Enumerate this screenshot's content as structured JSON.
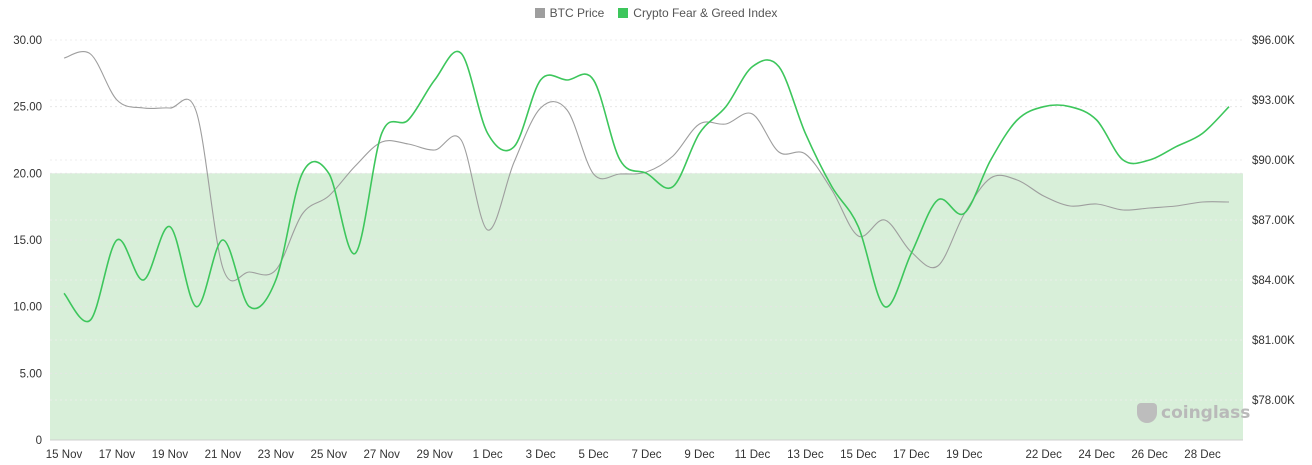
{
  "legend": [
    {
      "label": "BTC Price",
      "color": "#9e9e9e"
    },
    {
      "label": "Crypto Fear & Greed Index",
      "color": "#3dc65c"
    }
  ],
  "watermark": "coinglass",
  "chart_data": {
    "type": "line",
    "x": [
      "15 Nov",
      "16 Nov",
      "17 Nov",
      "18 Nov",
      "19 Nov",
      "20 Nov",
      "21 Nov",
      "22 Nov",
      "23 Nov",
      "24 Nov",
      "25 Nov",
      "26 Nov",
      "27 Nov",
      "28 Nov",
      "29 Nov",
      "30 Nov",
      "1 Dec",
      "2 Dec",
      "3 Dec",
      "4 Dec",
      "5 Dec",
      "6 Dec",
      "7 Dec",
      "8 Dec",
      "9 Dec",
      "10 Dec",
      "11 Dec",
      "12 Dec",
      "13 Dec",
      "14 Dec",
      "15 Dec",
      "16 Dec",
      "17 Dec",
      "18 Dec",
      "19 Dec",
      "20 Dec",
      "21 Dec",
      "22 Dec",
      "23 Dec",
      "24 Dec",
      "25 Dec",
      "26 Dec",
      "27 Dec",
      "28 Dec",
      "29 Dec"
    ],
    "x_tick_labels": [
      "15 Nov",
      "17 Nov",
      "19 Nov",
      "21 Nov",
      "23 Nov",
      "25 Nov",
      "27 Nov",
      "29 Nov",
      "1 Dec",
      "3 Dec",
      "5 Dec",
      "7 Dec",
      "9 Dec",
      "11 Dec",
      "13 Dec",
      "15 Dec",
      "17 Dec",
      "19 Dec",
      "22 Dec",
      "24 Dec",
      "26 Dec",
      "28 Dec"
    ],
    "y_left": {
      "ticks": [
        "0",
        "5.00",
        "10.00",
        "15.00",
        "20.00",
        "25.00",
        "30.00"
      ],
      "min": 0,
      "max": 30
    },
    "y_right": {
      "ticks": [
        "$78.00K",
        "$81.00K",
        "$84.00K",
        "$87.00K",
        "$90.00K",
        "$93.00K",
        "$96.00K"
      ],
      "min": 76000,
      "max": 96000
    },
    "shaded_band": {
      "from": 0,
      "to": 20,
      "color": "#d8efd9"
    },
    "grid": true,
    "legend_position": "top-center",
    "series": [
      {
        "name": "BTC Price",
        "axis": "right",
        "color": "#9e9e9e",
        "values": [
          95100,
          95300,
          93000,
          92600,
          92600,
          92400,
          84600,
          84400,
          84500,
          87300,
          88200,
          89700,
          90900,
          90800,
          90500,
          91000,
          86500,
          89900,
          92600,
          92500,
          89300,
          89300,
          89400,
          90200,
          91800,
          91800,
          92300,
          90400,
          90300,
          88500,
          86200,
          87000,
          85400,
          84700,
          87300,
          89100,
          89000,
          88200,
          87700,
          87800,
          87500,
          87600,
          87700,
          87900,
          87900
        ]
      },
      {
        "name": "Crypto Fear & Greed Index",
        "axis": "left",
        "color": "#3dc65c",
        "values": [
          11,
          9,
          15,
          12,
          16,
          10,
          15,
          10,
          12,
          20,
          20,
          14,
          23,
          24,
          27,
          29,
          23,
          22,
          27,
          27,
          27,
          21,
          20,
          19,
          23,
          25,
          28,
          28,
          23,
          19,
          16,
          10,
          14,
          18,
          17,
          21,
          24,
          25,
          25,
          24,
          21,
          21,
          22,
          23,
          25
        ]
      }
    ]
  }
}
